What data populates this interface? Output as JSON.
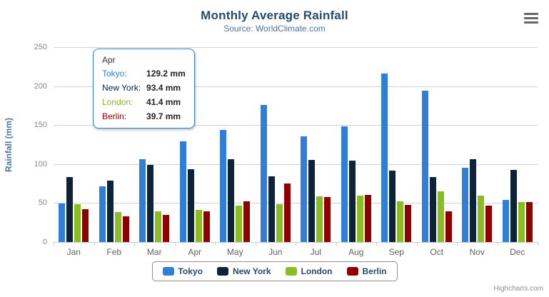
{
  "title": "Monthly Average Rainfall",
  "subtitle": "Source: WorldClimate.com",
  "credits": "Highcharts.com",
  "context_menu_icon": "hamburger-icon",
  "y_axis": {
    "title": "Rainfall (mm)",
    "ticks": [
      0,
      50,
      100,
      150,
      200,
      250
    ]
  },
  "x_axis": {
    "categories": [
      "Jan",
      "Feb",
      "Mar",
      "Apr",
      "May",
      "Jun",
      "Jul",
      "Aug",
      "Sep",
      "Oct",
      "Nov",
      "Dec"
    ]
  },
  "tooltip": {
    "header": "Apr",
    "rows": [
      {
        "name": "Tokyo:",
        "value": "129.2 mm",
        "color": "#2f7ed8"
      },
      {
        "name": "New York:",
        "value": "93.4 mm",
        "color": "#0d233a"
      },
      {
        "name": "London:",
        "value": "41.4 mm",
        "color": "#8bbc21"
      },
      {
        "name": "Berlin:",
        "value": "39.7 mm",
        "color": "#910000"
      }
    ],
    "border_color": "#2f7ed8"
  },
  "legend": {
    "items": [
      {
        "label": "Tokyo",
        "color": "#2f7ed8"
      },
      {
        "label": "New York",
        "color": "#0d233a"
      },
      {
        "label": "London",
        "color": "#8bbc21"
      },
      {
        "label": "Berlin",
        "color": "#910000"
      }
    ]
  },
  "chart_data": {
    "type": "bar",
    "title": "Monthly Average Rainfall",
    "subtitle": "Source: WorldClimate.com",
    "categories": [
      "Jan",
      "Feb",
      "Mar",
      "Apr",
      "May",
      "Jun",
      "Jul",
      "Aug",
      "Sep",
      "Oct",
      "Nov",
      "Dec"
    ],
    "series": [
      {
        "name": "Tokyo",
        "color": "#2f7ed8",
        "values": [
          49.9,
          71.5,
          106.4,
          129.2,
          144.0,
          176.0,
          135.6,
          148.5,
          216.4,
          194.1,
          95.6,
          54.4
        ]
      },
      {
        "name": "New York",
        "color": "#0d233a",
        "values": [
          83.6,
          78.8,
          98.5,
          93.4,
          106.0,
          84.5,
          105.0,
          104.3,
          91.2,
          83.5,
          106.6,
          92.3
        ]
      },
      {
        "name": "London",
        "color": "#8bbc21",
        "values": [
          48.9,
          38.8,
          39.3,
          41.4,
          47.0,
          48.3,
          59.0,
          59.6,
          52.4,
          65.2,
          59.3,
          51.2
        ]
      },
      {
        "name": "Berlin",
        "color": "#910000",
        "values": [
          42.4,
          33.2,
          34.5,
          39.7,
          52.6,
          75.5,
          57.4,
          60.4,
          47.6,
          39.1,
          46.8,
          51.1
        ]
      }
    ],
    "xlabel": "",
    "ylabel": "Rainfall (mm)",
    "ylim": [
      0,
      250
    ],
    "grid": true,
    "legend_position": "bottom",
    "tooltip_shown_for_category": "Apr"
  }
}
